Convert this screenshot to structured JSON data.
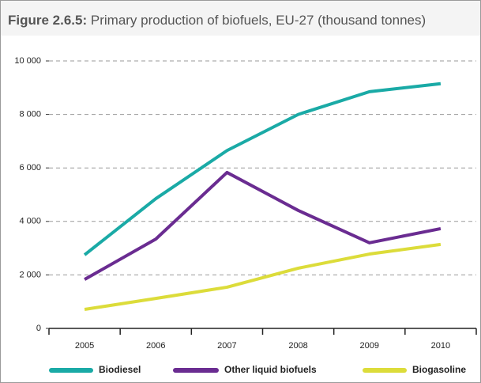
{
  "chart_data": {
    "type": "line",
    "title_label": "Figure 2.6.5:",
    "title": "Primary production of biofuels, EU-27 (thousand tonnes)",
    "categories": [
      "2005",
      "2006",
      "2007",
      "2008",
      "2009",
      "2010"
    ],
    "series": [
      {
        "name": "Biodiesel",
        "color": "#1aaaa6",
        "values": [
          2750,
          4850,
          6650,
          8000,
          8850,
          9150
        ]
      },
      {
        "name": "Other liquid biofuels",
        "color": "#6a2c91",
        "values": [
          1830,
          3340,
          5830,
          4410,
          3200,
          3730
        ]
      },
      {
        "name": "Biogasoline",
        "color": "#dcdc3a",
        "values": [
          710,
          1120,
          1540,
          2250,
          2780,
          3140
        ]
      }
    ],
    "ylim": [
      0,
      10000
    ],
    "yticks": [
      0,
      {
        "value": 2000,
        "label": "2 000"
      },
      {
        "value": 4000,
        "label": "4 000"
      },
      {
        "value": 6000,
        "label": "6 000"
      },
      {
        "value": 8000,
        "label": "8 000"
      },
      {
        "value": 10000,
        "label": "10 000"
      }
    ],
    "grid": true
  }
}
